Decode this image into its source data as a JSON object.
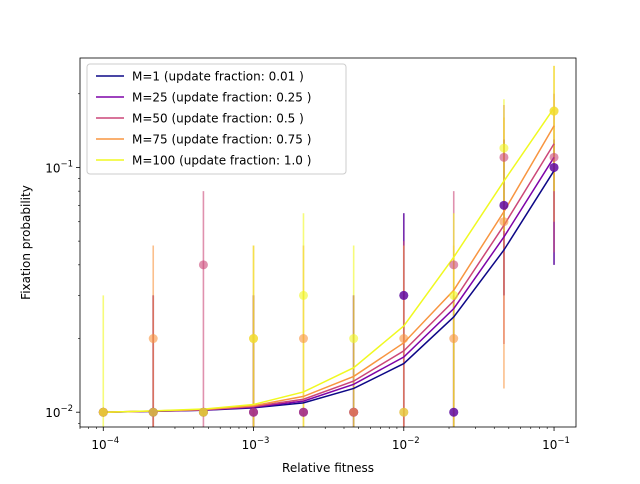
{
  "chart_data": {
    "type": "line",
    "title": "",
    "xlabel": "Relative fitness",
    "ylabel": "Fixation probability",
    "xscale": "log",
    "yscale": "log",
    "xlim": [
      7e-05,
      0.14
    ],
    "ylim": [
      0.0087,
      0.28
    ],
    "x_ticks": [
      {
        "value": 0.0001,
        "base": "10",
        "exp": "−4"
      },
      {
        "value": 0.001,
        "base": "10",
        "exp": "−3"
      },
      {
        "value": 0.01,
        "base": "10",
        "exp": "−2"
      },
      {
        "value": 0.1,
        "base": "10",
        "exp": "−1"
      }
    ],
    "y_ticks": [
      {
        "value": 0.01,
        "base": "10",
        "exp": "−2"
      },
      {
        "value": 0.1,
        "base": "10",
        "exp": "−1"
      }
    ],
    "grid": false,
    "legend_position": "top-left",
    "x": [
      0.0001,
      0.000215,
      0.000464,
      0.001,
      0.00215,
      0.00464,
      0.01,
      0.0215,
      0.0464,
      0.1
    ],
    "series": [
      {
        "name": "M=1 (update fraction: 0.01 )",
        "color": "#0d0887",
        "fit": [
          0.01,
          0.01008,
          0.01018,
          0.01042,
          0.01092,
          0.0125,
          0.0158,
          0.0245,
          0.046,
          0.097
        ],
        "points": [
          0.01,
          0.01,
          0.01,
          0.01,
          0.01,
          0.01,
          0.03,
          0.01,
          0.07,
          0.1
        ],
        "err_low": [
          null,
          0.0087,
          null,
          0.0087,
          null,
          0.0087,
          0.0087,
          0.0087,
          0.03,
          0.04
        ],
        "err_high": [
          null,
          0.03,
          null,
          0.03,
          null,
          0.03,
          0.065,
          0.03,
          0.13,
          0.13
        ]
      },
      {
        "name": "M=25 (update fraction: 0.25 )",
        "color": "#7e03a8",
        "fit": [
          0.01,
          0.01009,
          0.0102,
          0.01048,
          0.0111,
          0.013,
          0.0168,
          0.0265,
          0.052,
          0.11
        ],
        "points": [
          0.01,
          0.01,
          0.01,
          0.01,
          0.01,
          0.01,
          0.03,
          0.01,
          0.07,
          0.1
        ],
        "err_low": [
          null,
          0.0087,
          null,
          0.0087,
          null,
          0.0087,
          0.0087,
          0.0087,
          0.03,
          0.04
        ],
        "err_high": [
          null,
          0.03,
          null,
          0.03,
          null,
          0.03,
          0.065,
          0.03,
          0.13,
          0.13
        ]
      },
      {
        "name": "M=50 (update fraction: 0.5 )",
        "color": "#cc4778",
        "fit": [
          0.01,
          0.0101,
          0.01023,
          0.01055,
          0.0113,
          0.0134,
          0.0178,
          0.0285,
          0.058,
          0.125
        ],
        "points": [
          0.01,
          0.01,
          0.04,
          0.01,
          0.01,
          0.01,
          0.01,
          0.04,
          0.11,
          0.11
        ],
        "err_low": [
          null,
          0.0087,
          0.0087,
          0.0087,
          null,
          0.0087,
          0.0087,
          0.0087,
          0.019,
          0.045
        ],
        "err_high": [
          null,
          0.03,
          0.08,
          0.03,
          null,
          0.03,
          0.05,
          0.08,
          0.18,
          0.2
        ]
      },
      {
        "name": "M=75 (update fraction: 0.75 )",
        "color": "#f89540",
        "fit": [
          0.01,
          0.01011,
          0.01026,
          0.01063,
          0.0116,
          0.014,
          0.0192,
          0.0315,
          0.066,
          0.148
        ],
        "points": [
          0.01,
          0.02,
          0.01,
          0.02,
          0.02,
          0.01,
          0.02,
          0.02,
          0.06,
          0.17
        ],
        "err_low": [
          null,
          0.0087,
          null,
          0.0087,
          0.0087,
          null,
          0.0087,
          0.0087,
          0.0125,
          0.06
        ],
        "err_high": [
          null,
          0.048,
          null,
          0.048,
          0.048,
          null,
          0.048,
          0.048,
          0.16,
          0.26
        ]
      },
      {
        "name": "M=100 (update fraction: 1.0 )",
        "color": "#f0f921",
        "fit": [
          0.01,
          0.01012,
          0.0103,
          0.01075,
          0.0121,
          0.0152,
          0.0225,
          0.043,
          0.088,
          0.175
        ],
        "points": [
          0.01,
          0.01,
          0.01,
          0.02,
          0.03,
          0.02,
          0.01,
          0.03,
          0.12,
          0.17
        ],
        "err_low": [
          0.0087,
          null,
          null,
          0.0087,
          0.0087,
          0.0087,
          null,
          0.0087,
          0.055,
          0.08
        ],
        "err_high": [
          0.03,
          null,
          null,
          0.048,
          0.065,
          0.048,
          null,
          0.065,
          0.19,
          0.26
        ]
      }
    ]
  }
}
